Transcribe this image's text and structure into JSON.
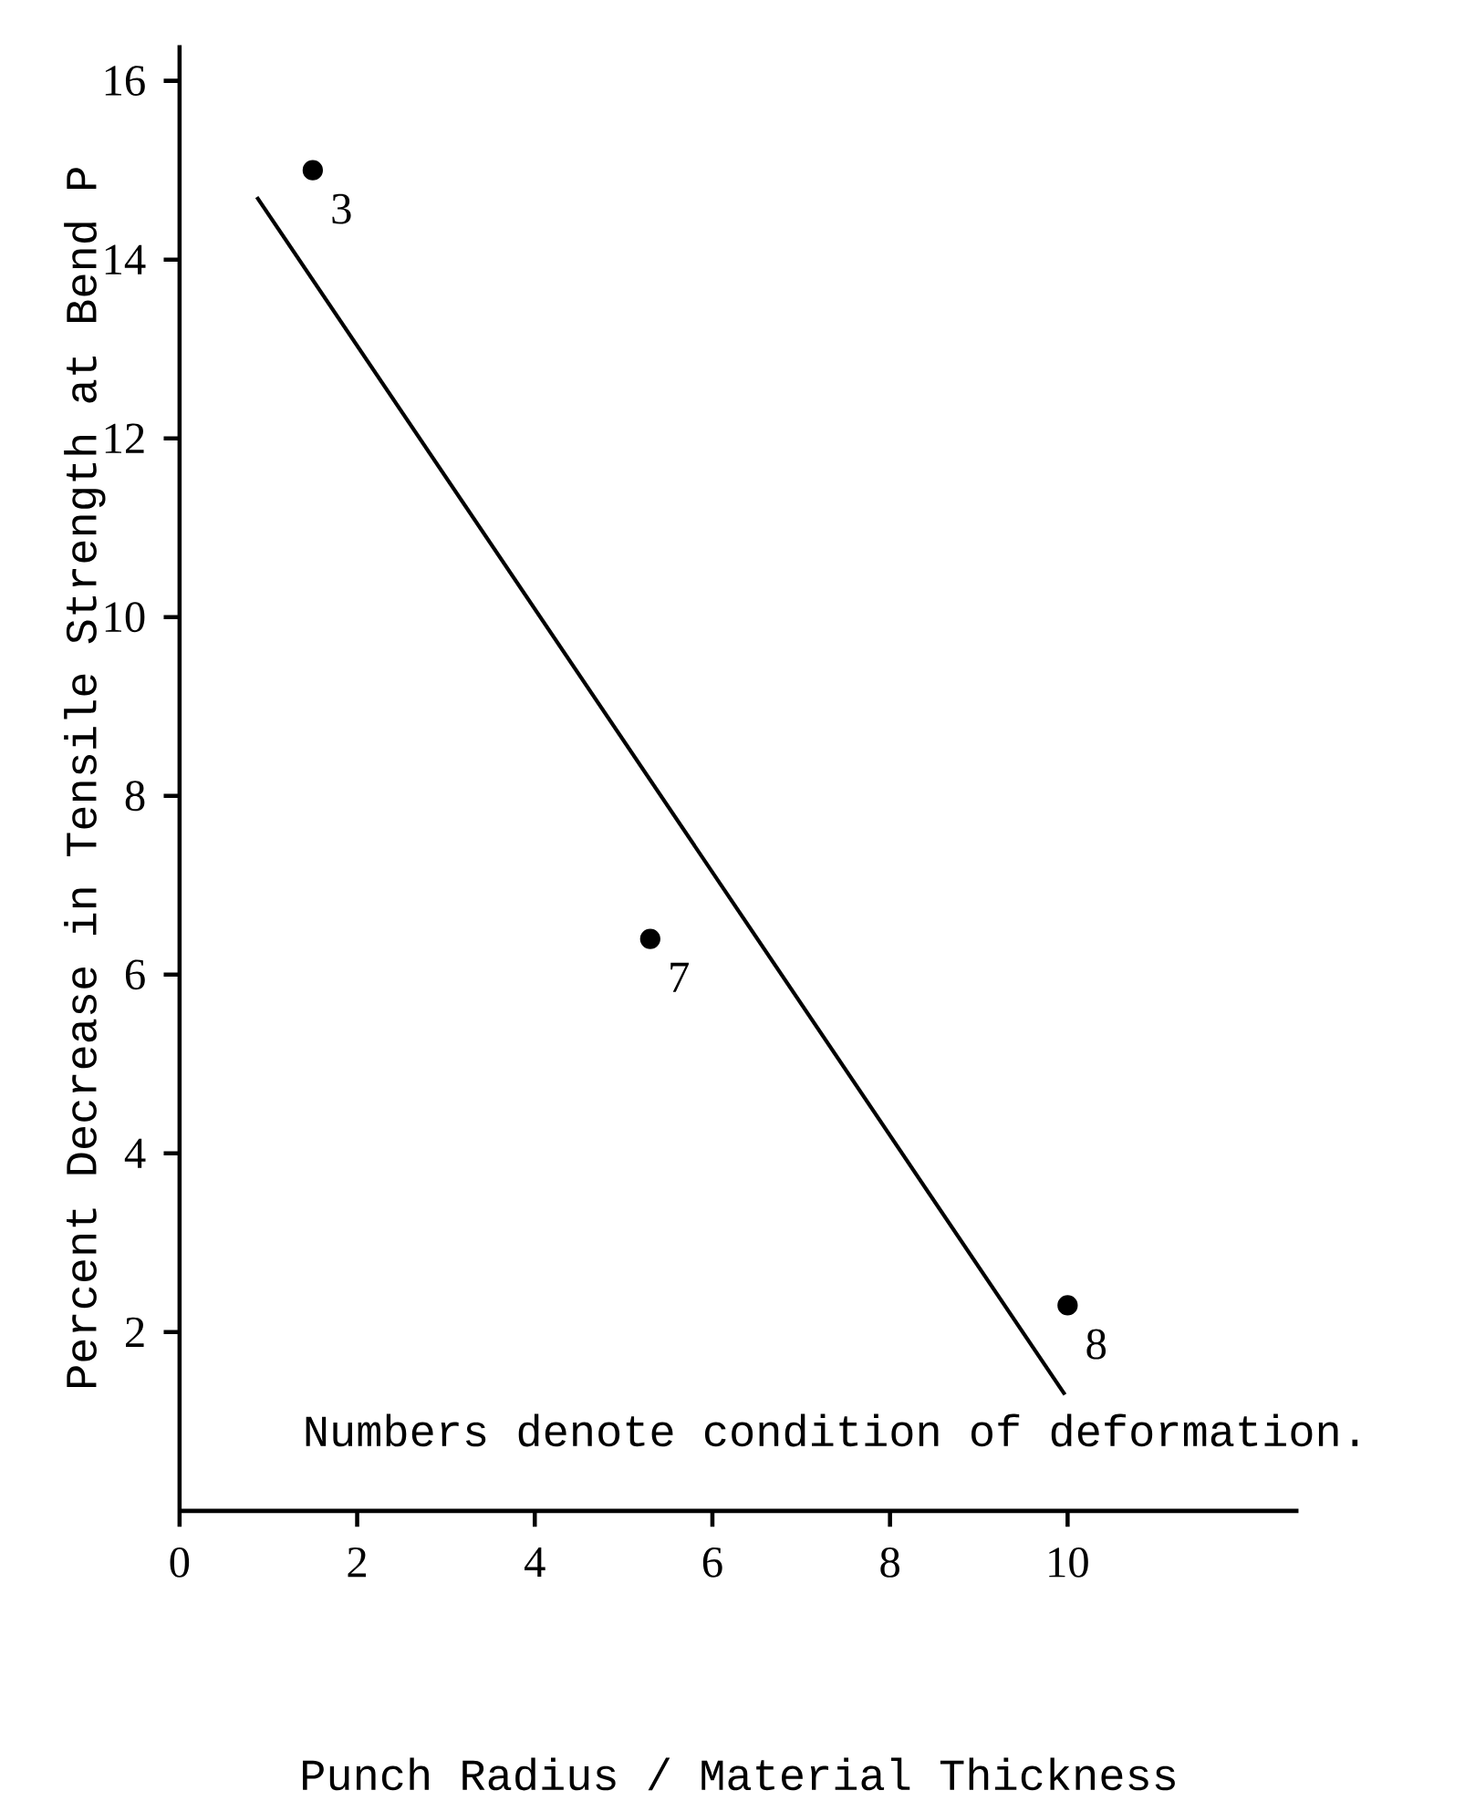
{
  "chart_data": {
    "type": "scatter",
    "xlabel": "Punch Radius / Material Thickness",
    "ylabel": "Percent Decrease in Tensile Strength at Bend P",
    "xlim": [
      0,
      12.6
    ],
    "ylim": [
      0,
      16.4
    ],
    "xticks": [
      0,
      2,
      4,
      6,
      8,
      10
    ],
    "yticks": [
      2,
      4,
      6,
      8,
      10,
      12,
      14,
      16
    ],
    "marker": "circle",
    "series": [
      {
        "color": "#000000",
        "x": [
          1.5,
          5.3,
          10.0
        ],
        "values": [
          15.0,
          6.4,
          2.3
        ]
      },
      {
        "type": "line",
        "color": "#000000",
        "marker": "none",
        "x": [
          0.87,
          9.97
        ],
        "values": [
          14.7,
          1.3
        ]
      }
    ],
    "annotations": [
      {
        "text": "3",
        "x": 1.5,
        "y": 15.0
      },
      {
        "text": "7",
        "x": 5.3,
        "y": 6.4
      },
      {
        "text": "8",
        "x": 10.0,
        "y": 2.3
      },
      "Numbers denote condition of deformation."
    ]
  }
}
